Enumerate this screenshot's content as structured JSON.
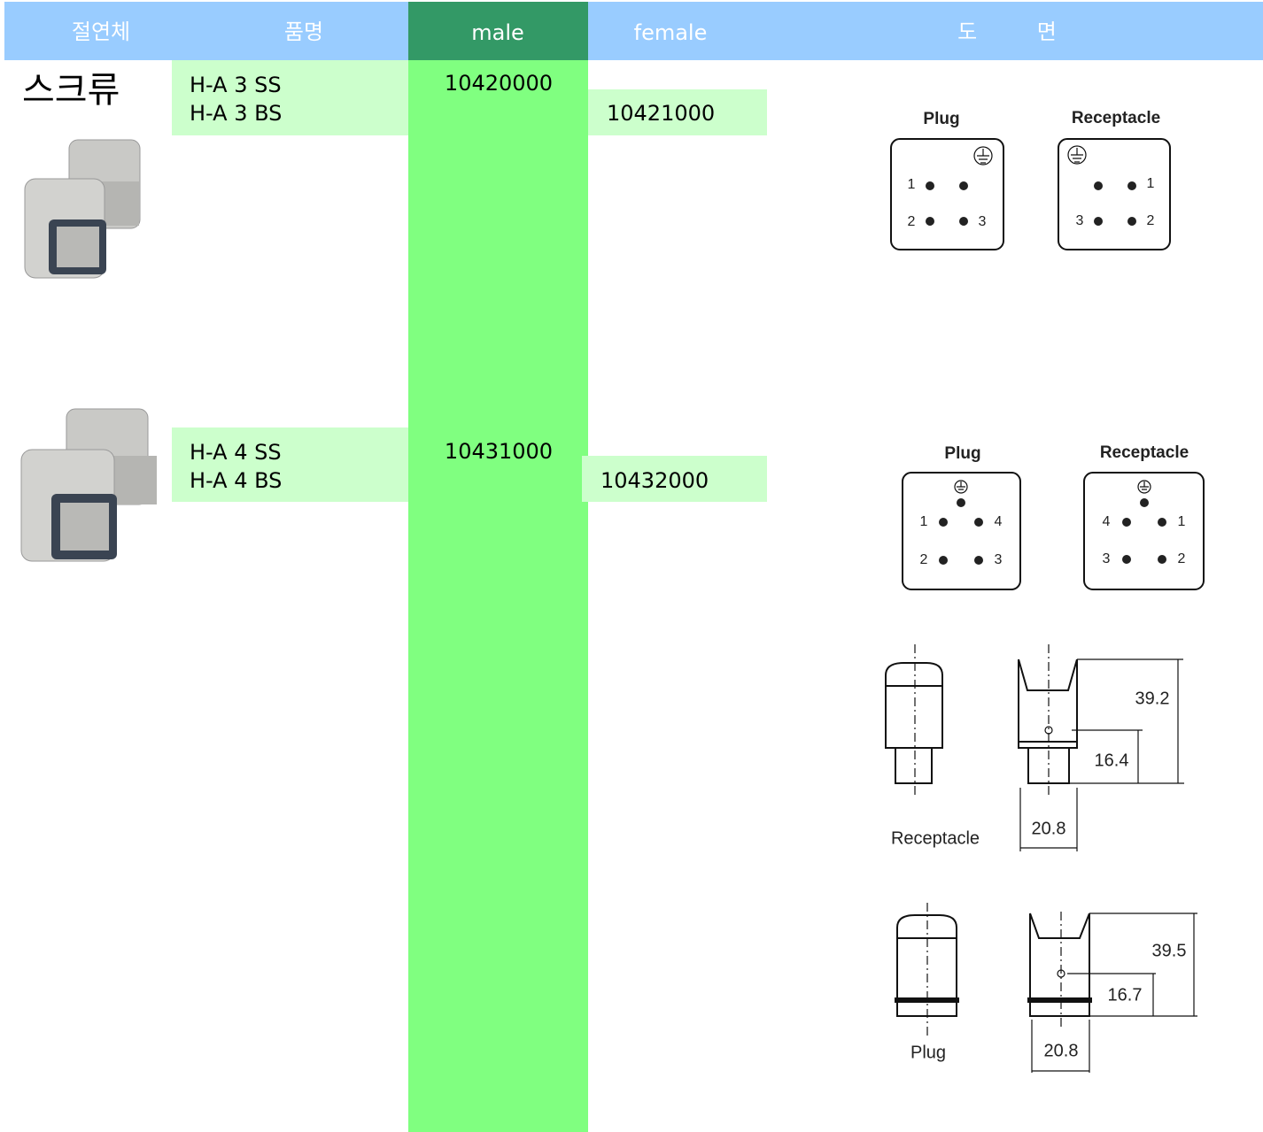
{
  "header": {
    "columns": [
      "절연체",
      "품명",
      "male",
      "female",
      "도 면"
    ]
  },
  "rows": [
    {
      "type": "스크류",
      "names": [
        "H-A 3 SS",
        "H-A 3 BS"
      ],
      "male": "10420000",
      "female": "10421000"
    },
    {
      "names": [
        "H-A 4 SS",
        "H-A 4 BS"
      ],
      "male": "10431000",
      "female": "10432000"
    }
  ],
  "pinouts": [
    {
      "plug": {
        "title": "Plug",
        "pins": [
          "1",
          "2",
          "3"
        ]
      },
      "receptacle": {
        "title": "Receptacle",
        "pins": [
          "1",
          "3",
          "2"
        ]
      }
    },
    {
      "plug": {
        "title": "Plug",
        "pins": [
          "1",
          "4",
          "2",
          "3"
        ]
      },
      "receptacle": {
        "title": "Receptacle",
        "pins": [
          "4",
          "1",
          "3",
          "2"
        ]
      }
    }
  ],
  "dimensions": [
    {
      "height": "39.2",
      "offset": "16.4",
      "width": "20.8",
      "label": "Receptacle"
    },
    {
      "height": "39.5",
      "offset": "16.7",
      "width": "20.8",
      "label": "Plug"
    }
  ]
}
